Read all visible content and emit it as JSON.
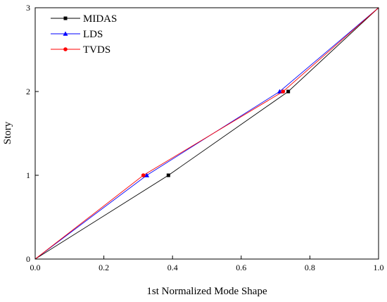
{
  "chart_data": {
    "type": "line",
    "xlabel": "1st Normalized Mode Shape",
    "ylabel": "Story",
    "xlim": [
      0.0,
      1.0
    ],
    "ylim": [
      0,
      3
    ],
    "xticks": [
      "0.0",
      "0.2",
      "0.4",
      "0.6",
      "0.8",
      "1.0"
    ],
    "yticks": [
      "0",
      "1",
      "2",
      "3"
    ],
    "grid": false,
    "legend_position": "top-left",
    "series": [
      {
        "name": "MIDAS",
        "color": "#000000",
        "marker": "square",
        "points": [
          [
            0.0,
            0
          ],
          [
            0.388,
            1
          ],
          [
            0.737,
            2
          ],
          [
            1.0,
            3
          ]
        ]
      },
      {
        "name": "LDS",
        "color": "#0000ff",
        "marker": "triangle",
        "points": [
          [
            0.0,
            0
          ],
          [
            0.325,
            1
          ],
          [
            0.712,
            2
          ],
          [
            1.0,
            3
          ]
        ]
      },
      {
        "name": "TVDS",
        "color": "#ff0000",
        "marker": "circle",
        "points": [
          [
            0.0,
            0
          ],
          [
            0.315,
            1
          ],
          [
            0.722,
            2
          ],
          [
            1.0,
            3
          ]
        ]
      }
    ]
  }
}
